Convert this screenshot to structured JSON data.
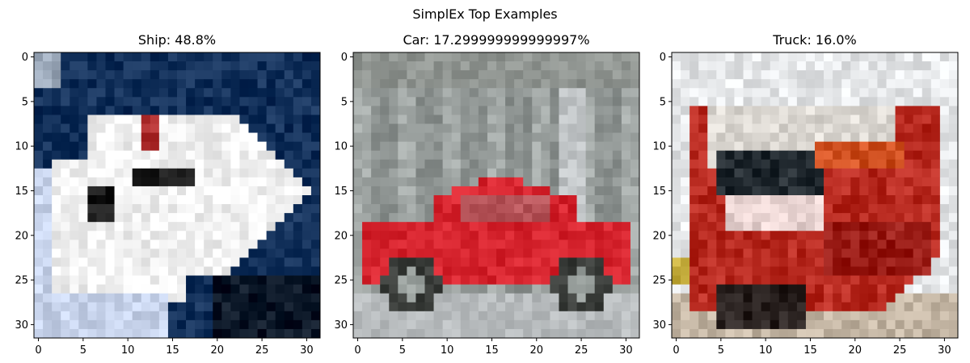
{
  "figure": {
    "title": "SimplEx Top Examples"
  },
  "chart_data": [
    {
      "type": "image",
      "title": "Ship: 48.8%",
      "label": "Ship",
      "weight_percent": 48.8,
      "xlim": [
        -0.5,
        31.5
      ],
      "ylim": [
        31.5,
        -0.5
      ],
      "xticks": [
        0,
        5,
        10,
        15,
        20,
        25,
        30
      ],
      "yticks": [
        0,
        5,
        10,
        15,
        20,
        25,
        30
      ],
      "image_description": "white boat on dark blue water",
      "palette": {
        "water": "#12305a",
        "hull": "#f2f2f2",
        "window": "#1a1a1a",
        "stripe": "#b03030",
        "spray": "#c8d4ec"
      }
    },
    {
      "type": "image",
      "title": "Car: 17.299999999999997%",
      "label": "Car",
      "weight_percent": 17.299999999999997,
      "xlim": [
        -0.5,
        31.5
      ],
      "ylim": [
        31.5,
        -0.5
      ],
      "xticks": [
        0,
        5,
        10,
        15,
        20,
        25,
        30
      ],
      "yticks": [
        0,
        5,
        10,
        15,
        20,
        25,
        30
      ],
      "image_description": "red sports car in front of grey building",
      "palette": {
        "building": "#8c9290",
        "car": "#d6242e",
        "tyre": "#3a3d3a",
        "road": "#b7bbbd"
      }
    },
    {
      "type": "image",
      "title": "Truck: 16.0%",
      "label": "Truck",
      "weight_percent": 16.0,
      "xlim": [
        -0.5,
        31.5
      ],
      "ylim": [
        31.5,
        -0.5
      ],
      "xticks": [
        0,
        5,
        10,
        15,
        20,
        25,
        30
      ],
      "yticks": [
        0,
        5,
        10,
        15,
        20,
        25,
        30
      ],
      "image_description": "red fire truck on street",
      "palette": {
        "sky": "#e6e8ea",
        "truck": "#b82a20",
        "cab": "#dcd8d2",
        "window": "#222a30",
        "ground": "#c4b6a4"
      }
    }
  ]
}
